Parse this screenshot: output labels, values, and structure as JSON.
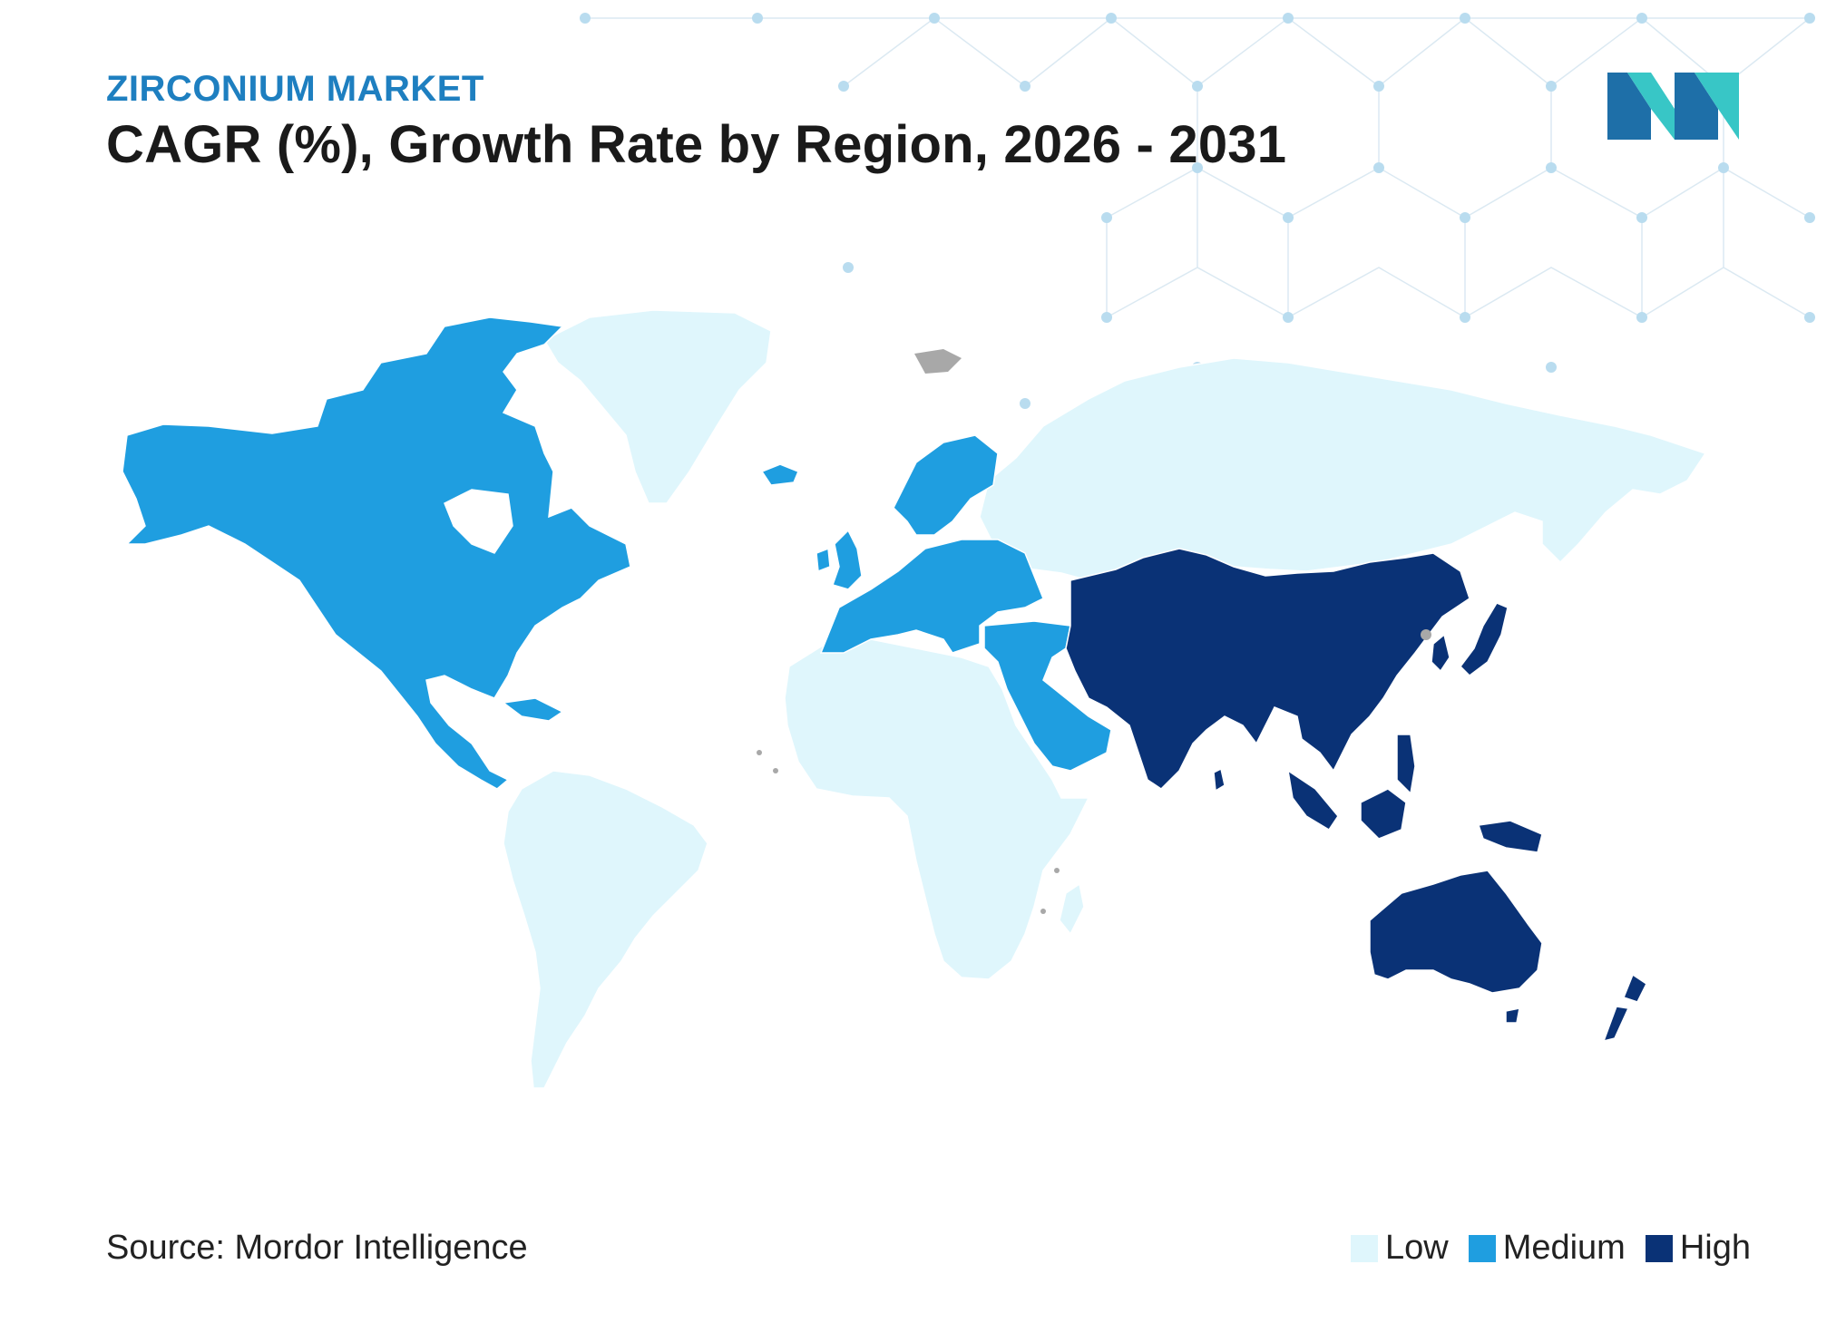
{
  "header": {
    "eyebrow": "ZIRCONIUM MARKET",
    "title": "CAGR (%), Growth Rate by Region, 2026 - 2031"
  },
  "footer": {
    "source": "Source: Mordor Intelligence"
  },
  "legend": [
    {
      "key": "low",
      "label": "Low",
      "color": "#dff6fc"
    },
    {
      "key": "medium",
      "label": "Medium",
      "color": "#1f9ee0"
    },
    {
      "key": "high",
      "label": "High",
      "color": "#0a3276"
    }
  ],
  "colors": {
    "eyebrow": "#1e7fc0",
    "no_data": "#a8a8a8",
    "logo_dark": "#1e6fa8",
    "logo_light": "#38c6c6"
  },
  "regions": [
    {
      "name": "North America",
      "level": "medium"
    },
    {
      "name": "Europe",
      "level": "medium"
    },
    {
      "name": "Middle East",
      "level": "medium"
    },
    {
      "name": "Asia-Pacific",
      "level": "high"
    },
    {
      "name": "South America",
      "level": "low"
    },
    {
      "name": "Africa",
      "level": "low"
    },
    {
      "name": "Greenland",
      "level": "low"
    },
    {
      "name": "Russia",
      "level": "low"
    }
  ]
}
